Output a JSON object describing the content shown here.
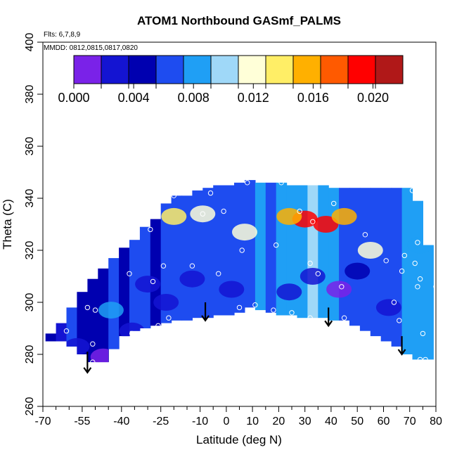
{
  "chart_data": {
    "type": "heatmap",
    "title": "ATOM1 Northbound GASmf_PALMS",
    "annotations": [
      "Flts: 6,7,8,9",
      "MMDD: 0812,0815,0817,0820"
    ],
    "xlabel": "Latitude (deg N)",
    "ylabel": "Theta (C)",
    "xlim": [
      -70,
      80
    ],
    "ylim": [
      260,
      400
    ],
    "x_ticks": [
      -70,
      -55,
      -40,
      -25,
      -10,
      0,
      10,
      20,
      30,
      40,
      50,
      60,
      70,
      80
    ],
    "x_tick_labels": [
      "-70",
      "-55",
      "-40",
      "-25",
      "-10",
      "0",
      "10",
      "20",
      "30",
      "40",
      "50",
      "60",
      "70",
      "80"
    ],
    "x_minor_ticks": [
      -65,
      -60,
      -50,
      -45,
      -35,
      -30,
      -20,
      -15,
      -5,
      5,
      15,
      25,
      35,
      45,
      55,
      65,
      75
    ],
    "y_ticks": [
      260,
      280,
      300,
      320,
      340,
      360,
      380,
      400
    ],
    "y_tick_labels": [
      "260",
      "280",
      "300",
      "320",
      "340",
      "360",
      "380",
      "400"
    ],
    "colorbar": {
      "range": [
        0,
        0.022
      ],
      "ticks": [
        0.0,
        0.004,
        0.008,
        0.012,
        0.016,
        0.02
      ],
      "tick_labels": [
        "0.000",
        "0.004",
        "0.008",
        "0.012",
        "0.016",
        "0.020"
      ],
      "colors": [
        "#7a22e8",
        "#1414d2",
        "#0000b0",
        "#1e4cf0",
        "#1f9ff5",
        "#9fd8f8",
        "#ffffd8",
        "#ffee66",
        "#ffb000",
        "#ff5a00",
        "#ff0000",
        "#b01818"
      ]
    },
    "grid": false,
    "field_columns": [
      {
        "lat": -67,
        "bottom": 285,
        "top": 288,
        "value": 0.004
      },
      {
        "lat": -63,
        "bottom": 285,
        "top": 292,
        "value": 0.003
      },
      {
        "lat": -59,
        "bottom": 283,
        "top": 298,
        "value": 0.006
      },
      {
        "lat": -55,
        "bottom": 280,
        "top": 304,
        "value": 0.005
      },
      {
        "lat": -51,
        "bottom": 277,
        "top": 309,
        "value": 0.004
      },
      {
        "lat": -47,
        "bottom": 277,
        "top": 313,
        "value": 0.005
      },
      {
        "lat": -43,
        "bottom": 282,
        "top": 317,
        "value": 0.006
      },
      {
        "lat": -39,
        "bottom": 287,
        "top": 321,
        "value": 0.005
      },
      {
        "lat": -35,
        "bottom": 289,
        "top": 324,
        "value": 0.006
      },
      {
        "lat": -31,
        "bottom": 290,
        "top": 329,
        "value": 0.007
      },
      {
        "lat": -27,
        "bottom": 291,
        "top": 332,
        "value": 0.005
      },
      {
        "lat": -23,
        "bottom": 292,
        "top": 338,
        "value": 0.006
      },
      {
        "lat": -19,
        "bottom": 293,
        "top": 341,
        "value": 0.007
      },
      {
        "lat": -15,
        "bottom": 293,
        "top": 341,
        "value": 0.006
      },
      {
        "lat": -11,
        "bottom": 294,
        "top": 343,
        "value": 0.007
      },
      {
        "lat": -7,
        "bottom": 294,
        "top": 344,
        "value": 0.007
      },
      {
        "lat": -3,
        "bottom": 295,
        "top": 345,
        "value": 0.007
      },
      {
        "lat": 1,
        "bottom": 295,
        "top": 345,
        "value": 0.007
      },
      {
        "lat": 5,
        "bottom": 296,
        "top": 346,
        "value": 0.006
      },
      {
        "lat": 9,
        "bottom": 298,
        "top": 347,
        "value": 0.007
      },
      {
        "lat": 13,
        "bottom": 297,
        "top": 346,
        "value": 0.008
      },
      {
        "lat": 17,
        "bottom": 296,
        "top": 346,
        "value": 0.007
      },
      {
        "lat": 21,
        "bottom": 295,
        "top": 346,
        "value": 0.008
      },
      {
        "lat": 25,
        "bottom": 295,
        "top": 345,
        "value": 0.009
      },
      {
        "lat": 29,
        "bottom": 294,
        "top": 345,
        "value": 0.009
      },
      {
        "lat": 33,
        "bottom": 294,
        "top": 345,
        "value": 0.01
      },
      {
        "lat": 37,
        "bottom": 294,
        "top": 345,
        "value": 0.009
      },
      {
        "lat": 41,
        "bottom": 293,
        "top": 344,
        "value": 0.008
      },
      {
        "lat": 45,
        "bottom": 293,
        "top": 344,
        "value": 0.007
      },
      {
        "lat": 49,
        "bottom": 291,
        "top": 344,
        "value": 0.007
      },
      {
        "lat": 53,
        "bottom": 289,
        "top": 344,
        "value": 0.007
      },
      {
        "lat": 57,
        "bottom": 287,
        "top": 344,
        "value": 0.006
      },
      {
        "lat": 61,
        "bottom": 285,
        "top": 344,
        "value": 0.007
      },
      {
        "lat": 65,
        "bottom": 283,
        "top": 344,
        "value": 0.007
      },
      {
        "lat": 69,
        "bottom": 280,
        "top": 344,
        "value": 0.008
      },
      {
        "lat": 73,
        "bottom": 278,
        "top": 339,
        "value": 0.008
      },
      {
        "lat": 77,
        "bottom": 278,
        "top": 322,
        "value": 0.008
      }
    ],
    "field_blobs": [
      {
        "lat": -47,
        "theta": 279,
        "value": 0.001
      },
      {
        "lat": -57,
        "theta": 283,
        "value": 0.002
      },
      {
        "lat": -36,
        "theta": 289,
        "value": 0.002
      },
      {
        "lat": -30,
        "theta": 307,
        "value": 0.002
      },
      {
        "lat": -23,
        "theta": 300,
        "value": 0.002
      },
      {
        "lat": -13,
        "theta": 309,
        "value": 0.003
      },
      {
        "lat": 2,
        "theta": 305,
        "value": 0.002
      },
      {
        "lat": 24,
        "theta": 304,
        "value": 0.002
      },
      {
        "lat": 33,
        "theta": 310,
        "value": 0.003
      },
      {
        "lat": 43,
        "theta": 305,
        "value": 0.001
      },
      {
        "lat": 50,
        "theta": 312,
        "value": 0.004
      },
      {
        "lat": 62,
        "theta": 298,
        "value": 0.003
      },
      {
        "lat": -20,
        "theta": 333,
        "value": 0.014
      },
      {
        "lat": -9,
        "theta": 334,
        "value": 0.012
      },
      {
        "lat": 7,
        "theta": 327,
        "value": 0.011
      },
      {
        "lat": 30,
        "theta": 332,
        "value": 0.02
      },
      {
        "lat": 38,
        "theta": 330,
        "value": 0.019
      },
      {
        "lat": 24,
        "theta": 333,
        "value": 0.016
      },
      {
        "lat": 45,
        "theta": 333,
        "value": 0.015
      },
      {
        "lat": 55,
        "theta": 320,
        "value": 0.011
      },
      {
        "lat": 74,
        "theta": 322,
        "value": 0.009
      },
      {
        "lat": -44,
        "theta": 297,
        "value": 0.009
      }
    ],
    "sample_points": [
      {
        "lat": -61,
        "theta": 289
      },
      {
        "lat": -53,
        "theta": 298
      },
      {
        "lat": -50,
        "theta": 297
      },
      {
        "lat": -51,
        "theta": 284
      },
      {
        "lat": -54,
        "theta": 277
      },
      {
        "lat": -51,
        "theta": 277
      },
      {
        "lat": -36,
        "theta": 288
      },
      {
        "lat": -37,
        "theta": 311
      },
      {
        "lat": -28,
        "theta": 308
      },
      {
        "lat": -29,
        "theta": 328
      },
      {
        "lat": -24,
        "theta": 314
      },
      {
        "lat": -26,
        "theta": 291
      },
      {
        "lat": -22,
        "theta": 294
      },
      {
        "lat": -20,
        "theta": 341
      },
      {
        "lat": -13,
        "theta": 314
      },
      {
        "lat": -9,
        "theta": 334
      },
      {
        "lat": -6,
        "theta": 342
      },
      {
        "lat": -3,
        "theta": 311
      },
      {
        "lat": -1,
        "theta": 335
      },
      {
        "lat": 5,
        "theta": 298
      },
      {
        "lat": 6,
        "theta": 320
      },
      {
        "lat": 8,
        "theta": 346
      },
      {
        "lat": 11,
        "theta": 299
      },
      {
        "lat": 18,
        "theta": 297
      },
      {
        "lat": 19,
        "theta": 322
      },
      {
        "lat": 21,
        "theta": 346
      },
      {
        "lat": 25,
        "theta": 296
      },
      {
        "lat": 28,
        "theta": 335
      },
      {
        "lat": 32,
        "theta": 315
      },
      {
        "lat": 33,
        "theta": 331
      },
      {
        "lat": 35,
        "theta": 311
      },
      {
        "lat": 32,
        "theta": 294
      },
      {
        "lat": 41,
        "theta": 338
      },
      {
        "lat": 44,
        "theta": 306
      },
      {
        "lat": 45,
        "theta": 294
      },
      {
        "lat": 53,
        "theta": 326
      },
      {
        "lat": 61,
        "theta": 316
      },
      {
        "lat": 64,
        "theta": 300
      },
      {
        "lat": 66,
        "theta": 293
      },
      {
        "lat": 67,
        "theta": 312
      },
      {
        "lat": 68,
        "theta": 318
      },
      {
        "lat": 71,
        "theta": 343
      },
      {
        "lat": 72,
        "theta": 315
      },
      {
        "lat": 73,
        "theta": 306
      },
      {
        "lat": 73,
        "theta": 323
      },
      {
        "lat": 74,
        "theta": 309
      },
      {
        "lat": 74,
        "theta": 278
      },
      {
        "lat": 75,
        "theta": 288
      },
      {
        "lat": 76,
        "theta": 278
      },
      {
        "lat": 80,
        "theta": 306
      }
    ],
    "arrows": [
      {
        "lat": -53,
        "theta_from": 281,
        "theta_to": 273
      },
      {
        "lat": -8,
        "theta_from": 300,
        "theta_to": 293
      },
      {
        "lat": 39,
        "theta_from": 298,
        "theta_to": 291
      },
      {
        "lat": 67,
        "theta_from": 287,
        "theta_to": 280
      }
    ]
  }
}
